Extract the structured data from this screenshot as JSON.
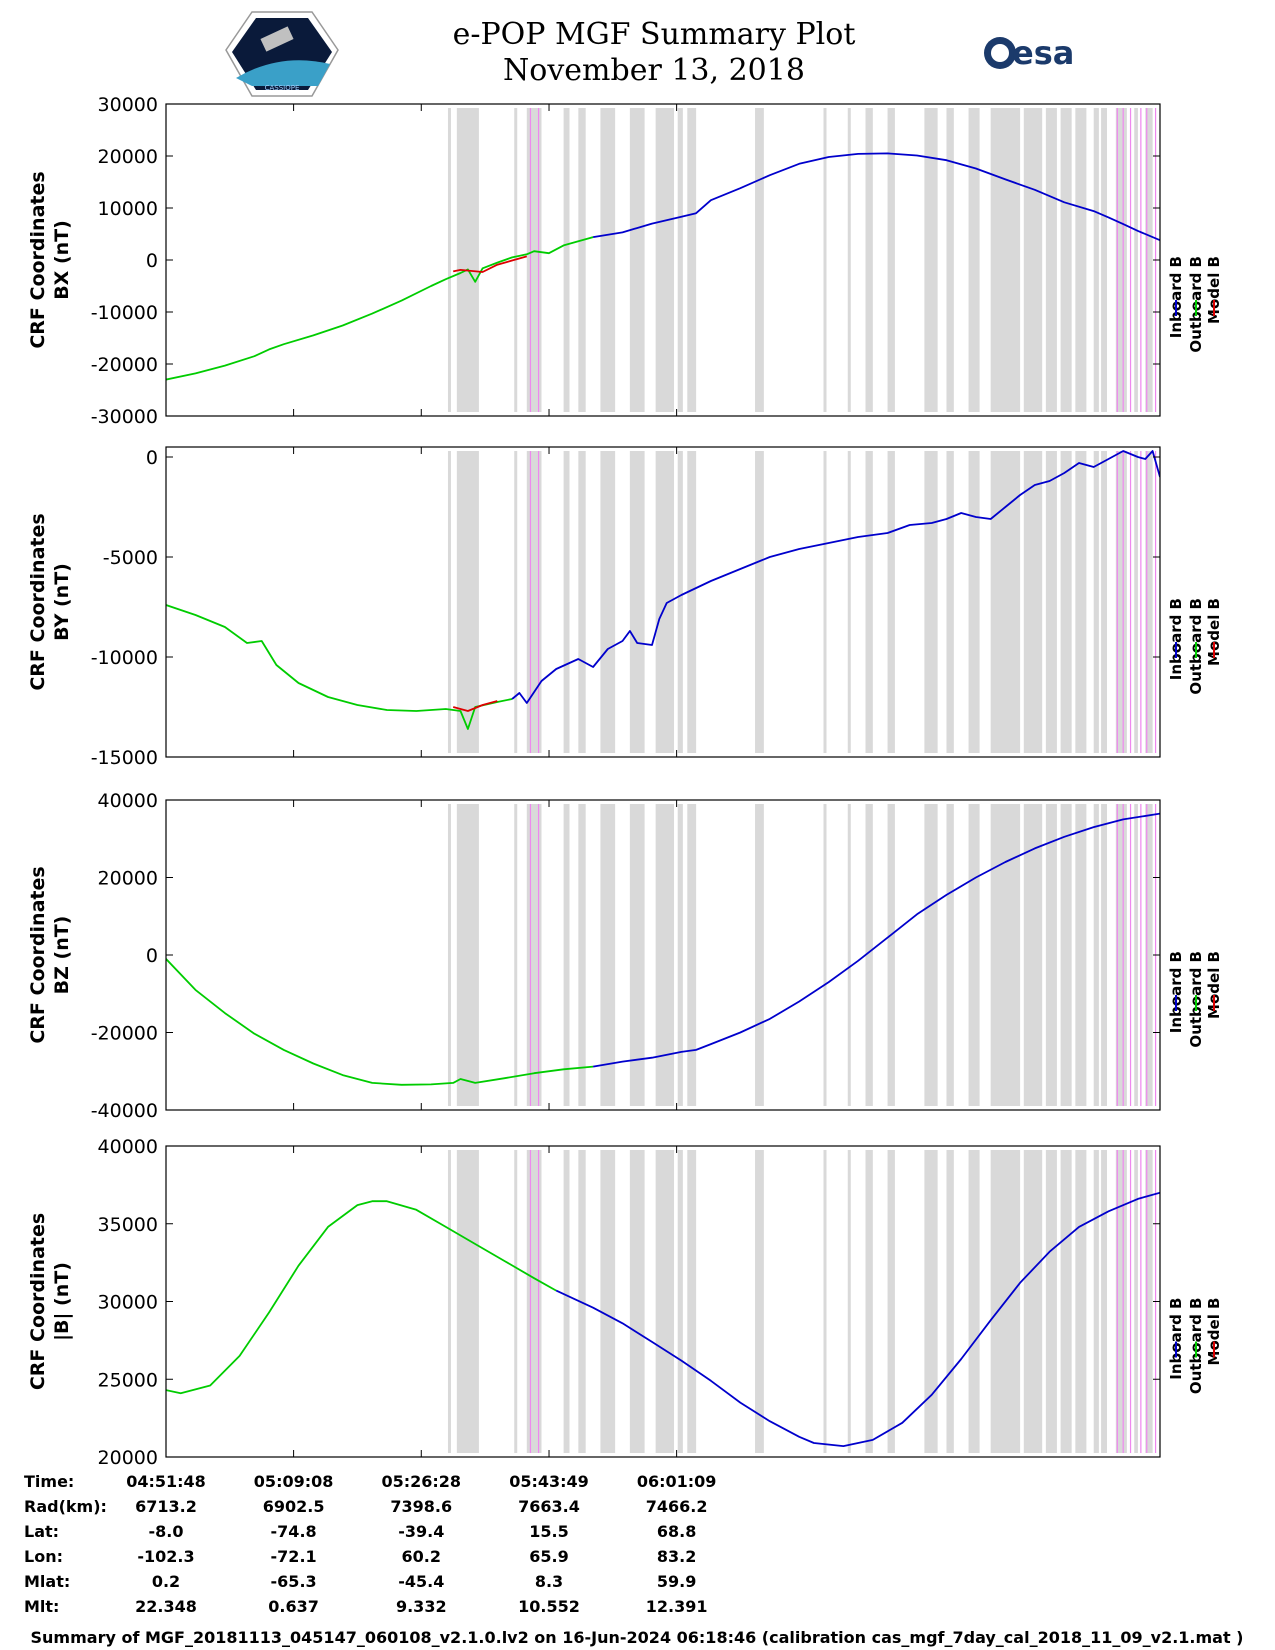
{
  "header": {
    "title_line1": "e-POP MGF Summary Plot",
    "title_line2": "November 13, 2018",
    "logo_left_text": "CASSIOPE",
    "logo_right_text": "esa"
  },
  "legend_labels": [
    "Inboard B",
    "Outboard B",
    "Model B"
  ],
  "colors": {
    "inboard": "#0000cc",
    "outboard": "#00cc00",
    "model": "#dd0000",
    "gray_band": "#d9d9d9",
    "magenta_line": "#ee88ee"
  },
  "chart_data": [
    {
      "type": "line",
      "ylabel": [
        "CRF Coordinates",
        "BX (nT)"
      ],
      "ylim": [
        -30000,
        30000
      ],
      "yticks": [
        30000,
        20000,
        10000,
        0,
        -10000,
        -20000,
        -30000
      ],
      "x_range_min": [
        0,
        87
      ],
      "series": [
        {
          "name": "Outboard B",
          "color": "outboard",
          "points": [
            [
              0,
              -23000
            ],
            [
              4,
              -21800
            ],
            [
              8,
              -20300
            ],
            [
              12,
              -18500
            ],
            [
              14,
              -17200
            ],
            [
              16,
              -16200
            ],
            [
              20,
              -14500
            ],
            [
              24,
              -12600
            ],
            [
              28,
              -10300
            ],
            [
              32,
              -7800
            ],
            [
              36,
              -5000
            ],
            [
              38,
              -3700
            ],
            [
              40,
              -2500
            ],
            [
              41,
              -1800
            ],
            [
              42,
              -4200
            ],
            [
              43,
              -1600
            ],
            [
              45,
              -500
            ],
            [
              47,
              500
            ],
            [
              49,
              1100
            ],
            [
              50,
              1700
            ],
            [
              52,
              1300
            ],
            [
              54,
              2800
            ],
            [
              58,
              4400
            ]
          ]
        },
        {
          "name": "Inboard B",
          "color": "inboard",
          "points": [
            [
              58,
              4400
            ],
            [
              62,
              5300
            ],
            [
              66,
              7000
            ],
            [
              70,
              8300
            ],
            [
              72,
              9000
            ],
            [
              74,
              11500
            ],
            [
              78,
              13800
            ],
            [
              82,
              16300
            ],
            [
              86,
              18500
            ],
            [
              90,
              19800
            ],
            [
              94,
              20400
            ],
            [
              98,
              20500
            ],
            [
              102,
              20100
            ],
            [
              106,
              19200
            ],
            [
              110,
              17600
            ],
            [
              114,
              15500
            ],
            [
              118,
              13500
            ],
            [
              122,
              11100
            ],
            [
              126,
              9400
            ],
            [
              128,
              8200
            ],
            [
              130,
              6900
            ],
            [
              132,
              5600
            ],
            [
              135,
              3800
            ]
          ]
        },
        {
          "name": "Model B",
          "color": "model",
          "points": [
            [
              39,
              -2200
            ],
            [
              40,
              -1900
            ],
            [
              43,
              -2300
            ],
            [
              45,
              -900
            ],
            [
              47,
              -100
            ],
            [
              49,
              700
            ]
          ]
        }
      ]
    },
    {
      "type": "line",
      "ylabel": [
        "CRF Coordinates",
        "BY (nT)"
      ],
      "ylim": [
        -15000,
        500
      ],
      "yticks": [
        0,
        -5000,
        -10000,
        -15000
      ],
      "x_range_min": [
        0,
        87
      ],
      "series": [
        {
          "name": "Outboard B",
          "color": "outboard",
          "points": [
            [
              0,
              -7400
            ],
            [
              4,
              -7900
            ],
            [
              8,
              -8500
            ],
            [
              11,
              -9300
            ],
            [
              13,
              -9200
            ],
            [
              15,
              -10400
            ],
            [
              18,
              -11300
            ],
            [
              22,
              -12000
            ],
            [
              26,
              -12400
            ],
            [
              30,
              -12650
            ],
            [
              34,
              -12700
            ],
            [
              38,
              -12600
            ],
            [
              40,
              -12700
            ],
            [
              41,
              -13600
            ],
            [
              42,
              -12500
            ],
            [
              45,
              -12250
            ],
            [
              47,
              -12100
            ]
          ]
        },
        {
          "name": "Inboard B",
          "color": "inboard",
          "points": [
            [
              47,
              -12100
            ],
            [
              48,
              -11800
            ],
            [
              49,
              -12300
            ],
            [
              51,
              -11200
            ],
            [
              53,
              -10600
            ],
            [
              56,
              -10100
            ],
            [
              58,
              -10500
            ],
            [
              60,
              -9600
            ],
            [
              62,
              -9200
            ],
            [
              63,
              -8700
            ],
            [
              64,
              -9300
            ],
            [
              66,
              -9400
            ],
            [
              67,
              -8100
            ],
            [
              68,
              -7300
            ],
            [
              70,
              -6900
            ],
            [
              74,
              -6200
            ],
            [
              78,
              -5600
            ],
            [
              82,
              -5000
            ],
            [
              86,
              -4600
            ],
            [
              90,
              -4300
            ],
            [
              94,
              -4000
            ],
            [
              98,
              -3800
            ],
            [
              101,
              -3400
            ],
            [
              104,
              -3300
            ],
            [
              106,
              -3100
            ],
            [
              108,
              -2800
            ],
            [
              110,
              -3000
            ],
            [
              112,
              -3100
            ],
            [
              114,
              -2500
            ],
            [
              116,
              -1900
            ],
            [
              118,
              -1400
            ],
            [
              120,
              -1200
            ],
            [
              122,
              -800
            ],
            [
              124,
              -300
            ],
            [
              126,
              -500
            ],
            [
              128,
              -100
            ],
            [
              130,
              300
            ],
            [
              132,
              0
            ],
            [
              133,
              -100
            ],
            [
              134,
              300
            ],
            [
              135,
              -1000
            ]
          ]
        },
        {
          "name": "Model B",
          "color": "model",
          "points": [
            [
              39,
              -12500
            ],
            [
              41,
              -12700
            ],
            [
              43,
              -12400
            ],
            [
              45,
              -12200
            ]
          ]
        }
      ]
    },
    {
      "type": "line",
      "ylabel": [
        "CRF Coordinates",
        "BZ (nT)"
      ],
      "ylim": [
        -40000,
        40000
      ],
      "yticks": [
        40000,
        20000,
        0,
        -20000,
        -40000
      ],
      "x_range_min": [
        0,
        87
      ],
      "series": [
        {
          "name": "Outboard B",
          "color": "outboard",
          "points": [
            [
              0,
              -1000
            ],
            [
              4,
              -9000
            ],
            [
              8,
              -15000
            ],
            [
              12,
              -20300
            ],
            [
              16,
              -24500
            ],
            [
              20,
              -28000
            ],
            [
              24,
              -31000
            ],
            [
              28,
              -33000
            ],
            [
              32,
              -33500
            ],
            [
              36,
              -33400
            ],
            [
              39,
              -33000
            ],
            [
              40,
              -32000
            ],
            [
              42,
              -33000
            ],
            [
              46,
              -31800
            ],
            [
              50,
              -30500
            ],
            [
              54,
              -29500
            ],
            [
              58,
              -28800
            ]
          ]
        },
        {
          "name": "Inboard B",
          "color": "inboard",
          "points": [
            [
              58,
              -28800
            ],
            [
              62,
              -27500
            ],
            [
              66,
              -26500
            ],
            [
              70,
              -25000
            ],
            [
              72,
              -24500
            ],
            [
              74,
              -23000
            ],
            [
              78,
              -20000
            ],
            [
              82,
              -16500
            ],
            [
              86,
              -12000
            ],
            [
              90,
              -7000
            ],
            [
              94,
              -1500
            ],
            [
              98,
              4500
            ],
            [
              102,
              10500
            ],
            [
              106,
              15500
            ],
            [
              110,
              20000
            ],
            [
              114,
              24000
            ],
            [
              118,
              27500
            ],
            [
              122,
              30500
            ],
            [
              126,
              33000
            ],
            [
              130,
              35000
            ],
            [
              135,
              36500
            ]
          ]
        },
        {
          "name": "Model B",
          "color": "model",
          "points": []
        }
      ]
    },
    {
      "type": "line",
      "ylabel": [
        "CRF Coordinates",
        "|B| (nT)"
      ],
      "ylim": [
        20000,
        40000
      ],
      "yticks": [
        40000,
        35000,
        30000,
        25000,
        20000
      ],
      "x_range_min": [
        0,
        87
      ],
      "series": [
        {
          "name": "Outboard B",
          "color": "outboard",
          "points": [
            [
              0,
              24300
            ],
            [
              2,
              24100
            ],
            [
              6,
              24600
            ],
            [
              10,
              26500
            ],
            [
              14,
              29300
            ],
            [
              18,
              32300
            ],
            [
              22,
              34800
            ],
            [
              26,
              36200
            ],
            [
              28,
              36450
            ],
            [
              30,
              36450
            ],
            [
              34,
              35900
            ],
            [
              38,
              34800
            ],
            [
              42,
              33700
            ],
            [
              46,
              32600
            ],
            [
              50,
              31500
            ],
            [
              53,
              30700
            ]
          ]
        },
        {
          "name": "Inboard B",
          "color": "inboard",
          "points": [
            [
              53,
              30700
            ],
            [
              58,
              29600
            ],
            [
              62,
              28600
            ],
            [
              66,
              27400
            ],
            [
              70,
              26200
            ],
            [
              74,
              24900
            ],
            [
              78,
              23500
            ],
            [
              82,
              22300
            ],
            [
              86,
              21300
            ],
            [
              88,
              20900
            ],
            [
              92,
              20700
            ],
            [
              96,
              21100
            ],
            [
              100,
              22200
            ],
            [
              104,
              24000
            ],
            [
              108,
              26300
            ],
            [
              112,
              28800
            ],
            [
              116,
              31200
            ],
            [
              120,
              33200
            ],
            [
              124,
              34800
            ],
            [
              128,
              35800
            ],
            [
              132,
              36600
            ],
            [
              135,
              37000
            ]
          ]
        },
        {
          "name": "Model B",
          "color": "model",
          "points": []
        }
      ]
    }
  ],
  "gray_bands_min": [
    [
      39.5,
      42.5
    ],
    [
      49,
      51
    ],
    [
      54,
      54.8
    ],
    [
      56,
      57
    ],
    [
      59,
      61
    ],
    [
      63,
      65
    ],
    [
      66.5,
      69
    ],
    [
      69.5,
      70.2
    ],
    [
      70.8,
      72
    ],
    [
      80,
      81.2
    ],
    [
      95,
      96
    ],
    [
      98,
      99
    ],
    [
      103,
      104.8
    ],
    [
      106,
      107
    ],
    [
      109,
      110.5
    ],
    [
      112,
      116
    ],
    [
      116.5,
      119
    ],
    [
      119.5,
      121
    ],
    [
      121.5,
      123
    ],
    [
      123.5,
      125
    ],
    [
      126,
      126.7
    ],
    [
      127,
      127.8
    ],
    [
      129,
      130.5
    ],
    [
      131.5,
      132
    ],
    [
      133,
      134
    ]
  ],
  "gray_lines_min": [
    38.5,
    47.5,
    89.5,
    92.8
  ],
  "magenta_lines_min": [
    49.5,
    50.6,
    129.2,
    130.0,
    131.0,
    132.4,
    133.2,
    134.4
  ],
  "ephemeris": {
    "row_labels": [
      "Time:",
      "Rad(km):",
      "Lat:",
      "Lon:",
      "Mlat:",
      "Mlt:"
    ],
    "columns": [
      {
        "Time": "04:51:48",
        "Rad": "6713.2",
        "Lat": "-8.0",
        "Lon": "-102.3",
        "Mlat": "0.2",
        "Mlt": "22.348"
      },
      {
        "Time": "05:09:08",
        "Rad": "6902.5",
        "Lat": "-74.8",
        "Lon": "-72.1",
        "Mlat": "-65.3",
        "Mlt": "0.637"
      },
      {
        "Time": "05:26:28",
        "Rad": "7398.6",
        "Lat": "-39.4",
        "Lon": "60.2",
        "Mlat": "-45.4",
        "Mlt": "9.332"
      },
      {
        "Time": "05:43:49",
        "Rad": "7663.4",
        "Lat": "15.5",
        "Lon": "65.9",
        "Mlat": "8.3",
        "Mlt": "10.552"
      },
      {
        "Time": "06:01:09",
        "Rad": "7466.2",
        "Lat": "68.8",
        "Lon": "83.2",
        "Mlat": "59.9",
        "Mlt": "12.391"
      }
    ]
  },
  "footer": "Summary of MGF_20181113_045147_060108_v2.1.0.lv2 on 16-Jun-2024 06:18:46 (calibration cas_mgf_7day_cal_2018_11_09_v2.1.mat )"
}
